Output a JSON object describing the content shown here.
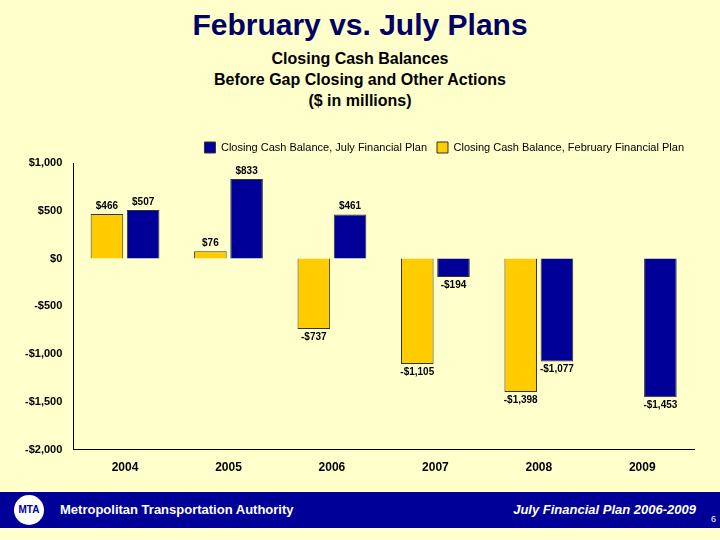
{
  "chart_data": {
    "type": "bar",
    "title": "February vs. July Plans",
    "subtitle": [
      "Closing Cash Balances",
      "Before Gap Closing and Other Actions",
      "($ in millions)"
    ],
    "categories": [
      "2004",
      "2005",
      "2006",
      "2007",
      "2008",
      "2009"
    ],
    "series": [
      {
        "name": "Closing Cash Balance, February Financial Plan",
        "color": "#FFCC00",
        "values": [
          466,
          76,
          -737,
          -1105,
          -1398,
          null
        ],
        "value_labels": [
          "$466",
          "$76",
          "-$737",
          "-$1,105",
          "-$1,398",
          null
        ]
      },
      {
        "name": "Closing Cash Balance, July Financial Plan",
        "color": "#000099",
        "values": [
          507,
          833,
          461,
          -194,
          -1077,
          -1453
        ],
        "value_labels": [
          "$507",
          "$833",
          "$461",
          "-$194",
          "-$1,077",
          "-$1,453"
        ]
      }
    ],
    "ylim": [
      -2000,
      1000
    ],
    "yticks": [
      {
        "value": -2000,
        "label": "-$2,000"
      },
      {
        "value": -1500,
        "label": "-$1,500"
      },
      {
        "value": -1000,
        "label": "-$1,000"
      },
      {
        "value": -500,
        "label": "-$500"
      },
      {
        "value": 0,
        "label": "$0"
      },
      {
        "value": 500,
        "label": "$500"
      },
      {
        "value": 1000,
        "label": "$1,000"
      }
    ],
    "grid": false,
    "legend": "upper right",
    "data_labels": true
  },
  "footer": {
    "logo": "MTA",
    "left": "Metropolitan Transportation Authority",
    "right": "July Financial Plan 2006-2009",
    "page": "6"
  }
}
